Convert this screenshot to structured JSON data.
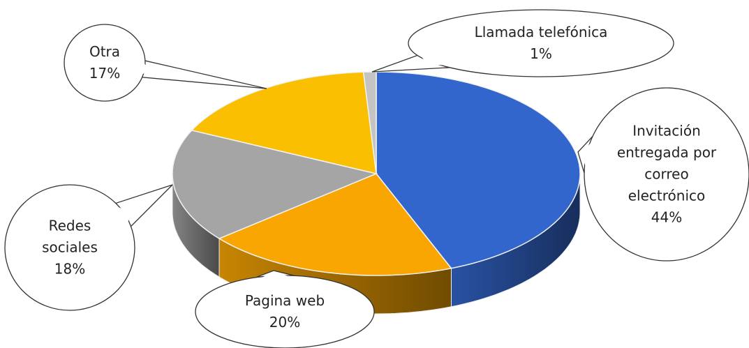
{
  "chart_data": {
    "type": "pie3d",
    "categories": [
      "Invitación entregada por correo electrónico",
      "Pagina web",
      "Redes sociales",
      "Otra",
      "Llamada telefónica"
    ],
    "values": [
      44,
      20,
      18,
      17,
      1
    ],
    "value_labels": [
      "44%",
      "20%",
      "18%",
      "17%",
      "1%"
    ],
    "colors": [
      "#3366cc",
      "#f9a602",
      "#a5a5a5",
      "#f9bf00",
      "#c4c4c4"
    ]
  }
}
